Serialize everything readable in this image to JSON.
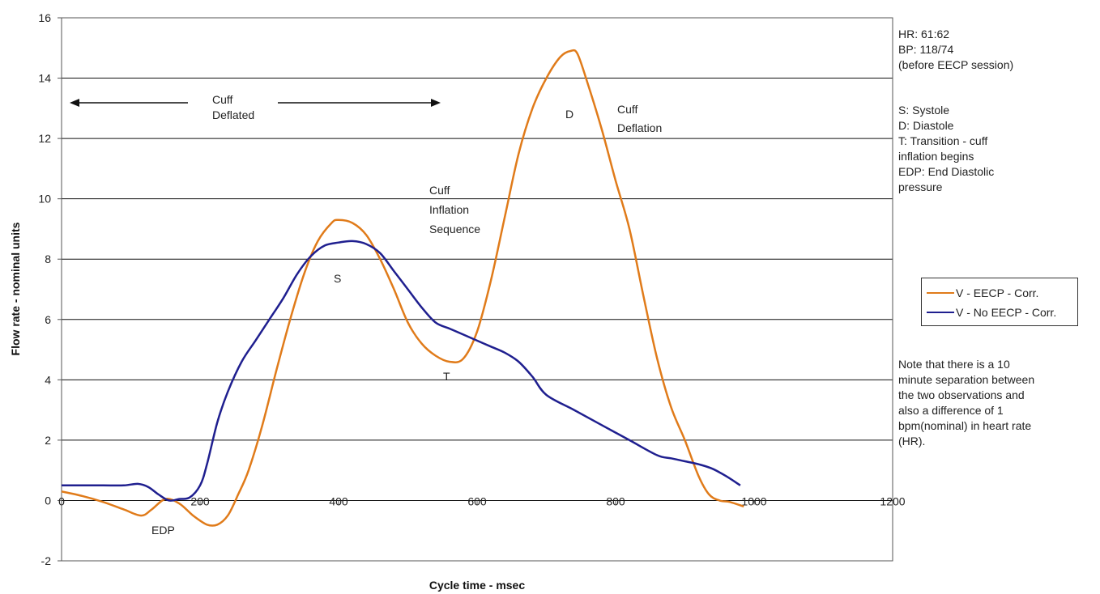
{
  "chart_data": {
    "type": "line",
    "title": "",
    "xlabel": "Cycle time - msec",
    "ylabel": "Flow rate - nominal units",
    "xlim": [
      0,
      1200
    ],
    "ylim": [
      -2,
      16
    ],
    "x_ticks": [
      "0",
      "200",
      "400",
      "600",
      "800",
      "1000",
      "1200"
    ],
    "y_ticks": [
      "-2",
      "0",
      "2",
      "4",
      "6",
      "8",
      "10",
      "12",
      "14",
      "16"
    ],
    "grid": "horizontal",
    "legend_position": "right",
    "series": [
      {
        "name": "V - EECP - Corr.",
        "color": "#E07B1A",
        "x": [
          0,
          30,
          60,
          90,
          115,
          130,
          150,
          170,
          190,
          210,
          225,
          240,
          255,
          270,
          290,
          310,
          330,
          350,
          370,
          390,
          400,
          420,
          440,
          460,
          480,
          500,
          520,
          540,
          560,
          580,
          600,
          620,
          640,
          660,
          680,
          700,
          720,
          735,
          745,
          760,
          780,
          800,
          820,
          840,
          860,
          880,
          900,
          920,
          935,
          950,
          965,
          985
        ],
        "y": [
          0.3,
          0.15,
          -0.05,
          -0.3,
          -0.5,
          -0.3,
          0.05,
          -0.1,
          -0.5,
          -0.8,
          -0.8,
          -0.5,
          0.2,
          1.0,
          2.5,
          4.3,
          6.0,
          7.5,
          8.6,
          9.2,
          9.3,
          9.2,
          8.8,
          8.0,
          7.0,
          5.9,
          5.2,
          4.8,
          4.6,
          4.7,
          5.6,
          7.3,
          9.4,
          11.5,
          13.0,
          14.0,
          14.7,
          14.9,
          14.8,
          13.8,
          12.3,
          10.6,
          9.0,
          6.8,
          4.7,
          3.1,
          2.0,
          0.8,
          0.2,
          0.0,
          -0.05,
          -0.2
        ]
      },
      {
        "name": "V - No EECP - Corr.",
        "color": "#1F1F8F",
        "x": [
          0,
          30,
          60,
          90,
          110,
          125,
          140,
          155,
          170,
          185,
          200,
          210,
          225,
          240,
          260,
          280,
          300,
          320,
          340,
          360,
          380,
          400,
          420,
          440,
          460,
          480,
          500,
          520,
          540,
          560,
          580,
          600,
          620,
          640,
          660,
          680,
          700,
          740,
          780,
          820,
          860,
          880,
          900,
          920,
          940,
          960,
          980
        ],
        "y": [
          0.5,
          0.5,
          0.5,
          0.5,
          0.55,
          0.45,
          0.2,
          0.0,
          0.05,
          0.1,
          0.5,
          1.2,
          2.6,
          3.6,
          4.6,
          5.3,
          6.0,
          6.7,
          7.5,
          8.1,
          8.45,
          8.55,
          8.6,
          8.5,
          8.2,
          7.6,
          7.0,
          6.4,
          5.9,
          5.7,
          5.5,
          5.3,
          5.1,
          4.9,
          4.6,
          4.1,
          3.5,
          3.0,
          2.5,
          2.0,
          1.5,
          1.4,
          1.3,
          1.2,
          1.05,
          0.8,
          0.5
        ]
      }
    ],
    "annotations": [
      "Cuff",
      "Deflated",
      "Cuff",
      "Inflation",
      "Sequence",
      "Cuff",
      "Deflation",
      "S",
      "D",
      "T",
      "EDP"
    ]
  },
  "side_notes": {
    "vitals": "HR: 61:62\nBP: 118/74\n(before EECP session)",
    "key": "S:    Systole\nD:    Diastole\nT:      Transition - cuff\ninflation begins\nEDP:  End Diastolic\npressure",
    "note": "Note that  there is a 10\nminute separation between\nthe two observations and\nalso a difference of 1\nbpm(nominal) in heart rate\n(HR)."
  }
}
